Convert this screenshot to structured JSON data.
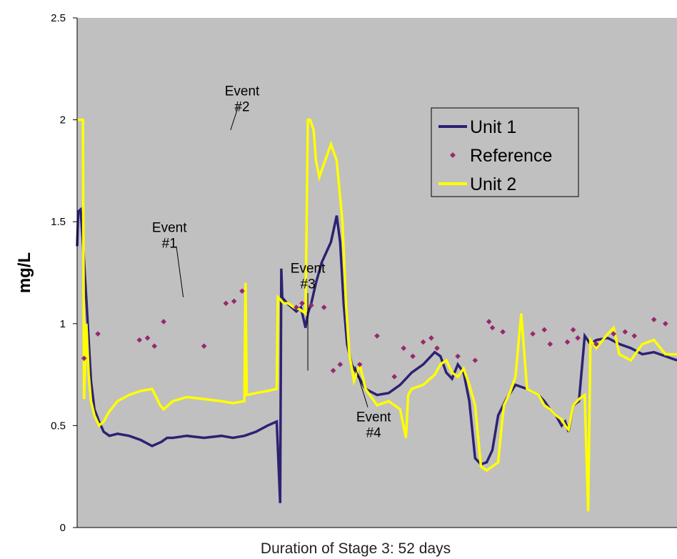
{
  "chart_data": {
    "type": "line",
    "title": "",
    "xlabel": "Duration of Stage 3: 52 days",
    "ylabel": "mg/L",
    "xlim": [
      0,
      52
    ],
    "ylim": [
      0,
      2.5
    ],
    "y_ticks": [
      "0",
      "0.5",
      "1",
      "1.5",
      "2",
      "2.5"
    ],
    "grid": false,
    "legend_position": "top-right",
    "colors": {
      "plot_background": "#c0c0c0",
      "unit1": "#2c2272",
      "unit2": "#ffff00",
      "reference": "#96286e"
    },
    "series": [
      {
        "name": "Unit 1",
        "color": "#2c2272",
        "x": [
          0.0,
          0.1,
          0.3,
          0.5,
          0.8,
          1.0,
          1.2,
          1.5,
          1.9,
          2.3,
          2.8,
          3.5,
          4.5,
          5.5,
          6.5,
          7.3,
          7.8,
          8.3,
          9.5,
          11.0,
          12.5,
          13.5,
          14.5,
          15.5,
          16.5,
          17.3,
          17.6,
          17.7,
          17.8,
          17.9,
          18.2,
          18.6,
          19.0,
          19.4,
          19.8,
          20.0,
          20.3,
          20.7,
          21.2,
          21.6,
          22.0,
          22.5,
          22.8,
          23.1,
          23.4,
          23.8,
          24.3,
          25.0,
          26.0,
          27.0,
          28.0,
          29.0,
          30.0,
          31.0,
          31.5,
          32.0,
          32.5,
          33.0,
          33.5,
          34.0,
          34.5,
          35.0,
          35.5,
          36.0,
          36.5,
          37.2,
          38.0,
          39.0,
          40.0,
          40.5,
          41.0,
          41.5,
          42.0,
          42.3,
          42.6,
          43.0,
          43.5,
          44.0,
          44.5,
          45.0,
          46.0,
          47.0,
          48.0,
          49.0,
          50.0,
          51.0,
          52.0
        ],
        "values": [
          1.38,
          1.55,
          1.56,
          1.4,
          1.12,
          0.92,
          0.72,
          0.58,
          0.52,
          0.47,
          0.45,
          0.46,
          0.45,
          0.43,
          0.4,
          0.42,
          0.44,
          0.44,
          0.45,
          0.44,
          0.45,
          0.44,
          0.45,
          0.47,
          0.5,
          0.52,
          0.12,
          1.27,
          1.1,
          1.12,
          1.1,
          1.08,
          1.06,
          1.08,
          0.98,
          1.05,
          1.1,
          1.2,
          1.3,
          1.35,
          1.4,
          1.53,
          1.4,
          1.1,
          0.9,
          0.8,
          0.75,
          0.68,
          0.65,
          0.66,
          0.7,
          0.76,
          0.8,
          0.86,
          0.84,
          0.76,
          0.73,
          0.8,
          0.76,
          0.62,
          0.34,
          0.31,
          0.32,
          0.38,
          0.55,
          0.63,
          0.7,
          0.68,
          0.65,
          0.62,
          0.58,
          0.55,
          0.5,
          0.52,
          0.47,
          0.6,
          0.62,
          0.94,
          0.9,
          0.92,
          0.93,
          0.9,
          0.88,
          0.85,
          0.86,
          0.84,
          0.82
        ]
      },
      {
        "name": "Unit 2",
        "color": "#ffff00",
        "x": [
          0.0,
          0.1,
          0.5,
          0.6,
          0.8,
          1.0,
          1.2,
          1.5,
          1.9,
          2.3,
          2.8,
          3.5,
          4.5,
          5.5,
          6.5,
          7.2,
          7.5,
          8.3,
          9.5,
          11.0,
          12.5,
          13.5,
          14.5,
          14.6,
          14.7,
          15.5,
          16.5,
          17.3,
          17.4,
          17.6,
          17.9,
          18.3,
          18.8,
          19.3,
          19.8,
          20.0,
          20.2,
          20.5,
          20.7,
          21.0,
          21.5,
          22.0,
          22.5,
          23.0,
          23.3,
          23.6,
          24.0,
          24.5,
          25.0,
          26.0,
          27.0,
          28.0,
          28.5,
          28.7,
          29.0,
          30.0,
          31.0,
          31.5,
          32.0,
          32.5,
          33.0,
          33.5,
          34.0,
          34.5,
          35.0,
          35.5,
          36.0,
          36.5,
          36.8,
          37.0,
          37.5,
          38.0,
          38.5,
          39.0,
          40.0,
          40.5,
          41.0,
          41.5,
          42.0,
          42.3,
          42.6,
          43.0,
          43.5,
          44.0,
          44.3,
          44.5,
          45.0,
          46.0,
          46.5,
          47.0,
          48.0,
          49.0,
          50.0,
          51.0,
          52.0
        ],
        "values": [
          2.0,
          2.0,
          2.0,
          0.63,
          1.0,
          0.75,
          0.62,
          0.55,
          0.5,
          0.52,
          0.57,
          0.62,
          0.65,
          0.67,
          0.68,
          0.6,
          0.58,
          0.62,
          0.64,
          0.63,
          0.62,
          0.61,
          0.62,
          1.2,
          0.65,
          0.66,
          0.67,
          0.68,
          1.13,
          1.12,
          1.1,
          1.1,
          1.08,
          1.07,
          1.05,
          2.0,
          2.0,
          1.95,
          1.8,
          1.72,
          1.8,
          1.88,
          1.8,
          1.5,
          1.1,
          0.85,
          0.72,
          0.8,
          0.68,
          0.6,
          0.62,
          0.58,
          0.44,
          0.65,
          0.68,
          0.7,
          0.75,
          0.8,
          0.82,
          0.76,
          0.74,
          0.78,
          0.7,
          0.6,
          0.3,
          0.28,
          0.3,
          0.32,
          0.5,
          0.6,
          0.66,
          0.74,
          1.05,
          0.68,
          0.65,
          0.6,
          0.58,
          0.55,
          0.53,
          0.5,
          0.48,
          0.6,
          0.63,
          0.65,
          0.08,
          0.92,
          0.88,
          0.95,
          0.98,
          0.85,
          0.82,
          0.9,
          0.92,
          0.85,
          0.85
        ]
      },
      {
        "name": "Reference",
        "color": "#96286e",
        "marker": "diamond",
        "x": [
          0.6,
          1.8,
          5.4,
          6.1,
          6.7,
          7.5,
          11.0,
          12.9,
          13.6,
          14.3,
          19.0,
          19.5,
          20.3,
          21.4,
          22.2,
          22.8,
          24.5,
          26.0,
          27.5,
          28.3,
          29.1,
          30.0,
          30.7,
          31.2,
          33.0,
          34.5,
          35.7,
          36.0,
          36.9,
          39.5,
          40.5,
          41.0,
          42.5,
          43.0,
          43.4,
          45.0,
          46.5,
          47.5,
          48.3,
          50.0,
          51.0
        ],
        "values": [
          0.83,
          0.95,
          0.92,
          0.93,
          0.89,
          1.01,
          0.89,
          1.1,
          1.11,
          1.16,
          1.08,
          1.1,
          1.09,
          1.08,
          0.77,
          0.8,
          0.8,
          0.94,
          0.74,
          0.88,
          0.84,
          0.91,
          0.93,
          0.88,
          0.84,
          0.82,
          1.01,
          0.98,
          0.96,
          0.95,
          0.97,
          0.9,
          0.91,
          0.97,
          0.93,
          0.9,
          0.95,
          0.96,
          0.94,
          1.02,
          1.0
        ]
      }
    ],
    "annotations": [
      {
        "lines": [
          "Event",
          "#1"
        ],
        "text_x": 8.0,
        "text_y": 1.45,
        "arrow_from": [
          8.6,
          1.38
        ],
        "arrow_to": [
          9.2,
          1.13
        ]
      },
      {
        "lines": [
          "Event",
          "#2"
        ],
        "text_x": 14.3,
        "text_y": 2.12,
        "arrow_from": [
          14.0,
          2.07
        ],
        "arrow_to": [
          13.3,
          1.95
        ]
      },
      {
        "lines": [
          "Event",
          "#3"
        ],
        "text_x": 20.0,
        "text_y": 1.25,
        "arrow_from": [
          20.0,
          1.15
        ],
        "arrow_to": [
          20.0,
          0.77
        ]
      },
      {
        "lines": [
          "Event",
          "#4"
        ],
        "text_x": 25.7,
        "text_y": 0.52,
        "arrow_from": [
          25.2,
          0.59
        ],
        "arrow_to": [
          24.1,
          0.79
        ]
      }
    ]
  }
}
